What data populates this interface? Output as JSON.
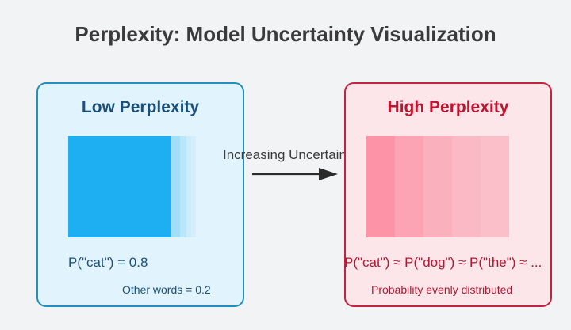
{
  "title": "Perplexity: Model Uncertainty Visualization",
  "arrow_label": "Increasing Uncertainty",
  "low": {
    "title": "Low Perplexity",
    "probability_text": "P(\"cat\") = 0.8",
    "note": "Other words = 0.2",
    "bar_colors": [
      "#1eaef2",
      "#a3def8",
      "#b9e6fa",
      "#cbecfa",
      "#d5eef9"
    ],
    "bar_weights": [
      0.8,
      0.07,
      0.05,
      0.04,
      0.04
    ]
  },
  "high": {
    "title": "High Perplexity",
    "probability_text": "P(\"cat\") ≈ P(\"dog\") ≈ P(\"the\") ≈ ...",
    "note": "Probability evenly distributed",
    "bar_colors": [
      "#fc93a7",
      "#fca3b4",
      "#fbb0be",
      "#fbb8c5",
      "#fbbfca"
    ],
    "bar_weights": [
      0.2,
      0.2,
      0.2,
      0.2,
      0.2
    ]
  },
  "colors": {
    "low_border": "#1e8fbf",
    "low_fill": "#e1f4fd",
    "high_border": "#c6213f",
    "high_fill": "#fde6ea"
  }
}
